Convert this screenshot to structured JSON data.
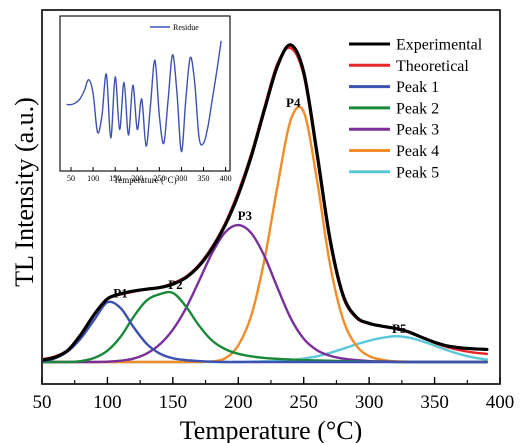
{
  "chart_data": [
    {
      "type": "line",
      "title": "",
      "xlabel": "Temperature (°C)",
      "ylabel": "TL Intensity (a.u.)",
      "xlim": [
        50,
        400
      ],
      "ylim": [
        0,
        1.0
      ],
      "x_ticks": [
        50,
        100,
        150,
        200,
        250,
        300,
        350,
        400
      ],
      "y_ticks_shown": false,
      "grid": false,
      "legend_position": "top-right",
      "x": [
        30,
        40,
        50,
        60,
        70,
        80,
        90,
        100,
        110,
        120,
        130,
        140,
        150,
        160,
        170,
        180,
        190,
        200,
        210,
        220,
        230,
        240,
        250,
        260,
        270,
        280,
        290,
        300,
        310,
        320,
        330,
        340,
        350,
        360,
        370,
        380,
        390
      ],
      "series": [
        {
          "name": "Experimental",
          "color": "#000000",
          "values": [
            0.0,
            0.002,
            0.006,
            0.015,
            0.038,
            0.089,
            0.152,
            0.201,
            0.217,
            0.226,
            0.232,
            0.237,
            0.248,
            0.269,
            0.306,
            0.362,
            0.436,
            0.533,
            0.656,
            0.803,
            0.943,
            1.01,
            0.923,
            0.67,
            0.394,
            0.214,
            0.144,
            0.123,
            0.114,
            0.107,
            0.096,
            0.079,
            0.063,
            0.051,
            0.045,
            0.042,
            0.04
          ]
        },
        {
          "name": "Theoretical",
          "color": "#e8262a",
          "values": [
            0.001,
            0.004,
            0.009,
            0.018,
            0.039,
            0.091,
            0.153,
            0.2,
            0.215,
            0.224,
            0.232,
            0.238,
            0.251,
            0.272,
            0.31,
            0.367,
            0.442,
            0.542,
            0.664,
            0.812,
            0.951,
            1.0,
            0.913,
            0.658,
            0.384,
            0.208,
            0.141,
            0.122,
            0.114,
            0.107,
            0.095,
            0.078,
            0.061,
            0.047,
            0.037,
            0.03,
            0.026
          ]
        },
        {
          "name": "Peak 1",
          "color": "#3d51b0",
          "values": [
            0.0,
            0.0,
            0.003,
            0.012,
            0.035,
            0.077,
            0.135,
            0.19,
            0.172,
            0.111,
            0.058,
            0.027,
            0.012,
            0.006,
            0.003,
            0.001,
            0.0,
            0.0,
            0.0,
            0.0,
            0.0,
            0.0,
            0.0,
            0.0,
            0.0,
            0.0,
            0.0,
            0.0,
            0.0,
            0.0,
            0.0,
            0.0,
            0.0,
            0.0,
            0.0,
            0.0,
            0.0
          ]
        },
        {
          "name": "Peak 2",
          "color": "#1a8a3a",
          "values": [
            0.0,
            0.0,
            0.0,
            0.0,
            0.0,
            0.003,
            0.013,
            0.036,
            0.08,
            0.144,
            0.196,
            0.216,
            0.22,
            0.177,
            0.116,
            0.068,
            0.041,
            0.026,
            0.018,
            0.013,
            0.01,
            0.008,
            0.006,
            0.005,
            0.004,
            0.003,
            0.002,
            0.001,
            0.001,
            0.0,
            0.0,
            0.0,
            0.0,
            0.0,
            0.0,
            0.0,
            0.0
          ]
        },
        {
          "name": "Peak 3",
          "color": "#7b2f9a",
          "values": [
            0.0,
            0.0,
            0.0,
            0.0,
            0.0,
            0.0,
            0.0,
            0.001,
            0.004,
            0.011,
            0.027,
            0.056,
            0.103,
            0.171,
            0.258,
            0.347,
            0.413,
            0.436,
            0.41,
            0.337,
            0.236,
            0.14,
            0.074,
            0.038,
            0.02,
            0.011,
            0.006,
            0.003,
            0.002,
            0.001,
            0.0,
            0.0,
            0.0,
            0.0,
            0.0,
            0.0,
            0.0
          ]
        },
        {
          "name": "Peak 4",
          "color": "#f28c28",
          "values": [
            0.0,
            0.0,
            0.0,
            0.0,
            0.0,
            0.0,
            0.0,
            0.0,
            0.0,
            0.0,
            0.0,
            0.0,
            0.0,
            0.0,
            0.0,
            0.002,
            0.012,
            0.053,
            0.149,
            0.326,
            0.561,
            0.77,
            0.797,
            0.583,
            0.313,
            0.137,
            0.053,
            0.019,
            0.007,
            0.002,
            0.001,
            0.0,
            0.0,
            0.0,
            0.0,
            0.0,
            0.0
          ]
        },
        {
          "name": "Peak 5",
          "color": "#5bc8d8",
          "values": [
            0.0,
            0.0,
            0.0,
            0.0,
            0.0,
            0.0,
            0.0,
            0.0,
            0.0,
            0.0,
            0.0,
            0.0,
            0.0,
            0.0,
            0.0,
            0.0,
            0.0,
            0.0,
            0.001,
            0.002,
            0.003,
            0.006,
            0.011,
            0.018,
            0.029,
            0.042,
            0.056,
            0.068,
            0.077,
            0.082,
            0.078,
            0.067,
            0.052,
            0.037,
            0.024,
            0.014,
            0.008
          ]
        }
      ],
      "annotations": [
        {
          "text": "P1",
          "x": 110,
          "y": 0.205
        },
        {
          "text": "P2",
          "x": 152,
          "y": 0.232
        },
        {
          "text": "P3",
          "x": 205,
          "y": 0.453
        },
        {
          "text": "P4",
          "x": 242,
          "y": 0.812
        },
        {
          "text": "P5",
          "x": 323,
          "y": 0.093
        }
      ]
    },
    {
      "type": "line",
      "title": "",
      "xlabel": "Temperature (°C)",
      "ylabel": "",
      "xlim": [
        25,
        410
      ],
      "ylim": [
        -1.2,
        1.6
      ],
      "x_ticks": [
        50,
        100,
        150,
        200,
        250,
        300,
        350,
        400
      ],
      "grid": false,
      "legend_position": "top-right",
      "x": [
        40,
        50,
        60,
        70,
        80,
        90,
        100,
        110,
        120,
        130,
        140,
        150,
        160,
        170,
        180,
        190,
        200,
        210,
        220,
        230,
        240,
        250,
        260,
        270,
        280,
        290,
        300,
        310,
        320,
        330,
        340,
        350,
        360,
        370,
        380,
        390
      ],
      "series": [
        {
          "name": "Residue",
          "color": "#3d51b0",
          "values": [
            0.0,
            0.0,
            0.03,
            0.1,
            0.25,
            0.45,
            0.2,
            -0.5,
            -0.2,
            0.55,
            -0.6,
            0.5,
            -0.45,
            0.4,
            -0.55,
            0.35,
            -0.45,
            0.1,
            -0.75,
            0.0,
            0.8,
            -0.2,
            -0.7,
            0.1,
            0.9,
            0.2,
            -0.85,
            0.1,
            0.85,
            0.4,
            -0.6,
            -0.7,
            -0.4,
            0.1,
            0.6,
            1.15
          ]
        }
      ]
    }
  ]
}
